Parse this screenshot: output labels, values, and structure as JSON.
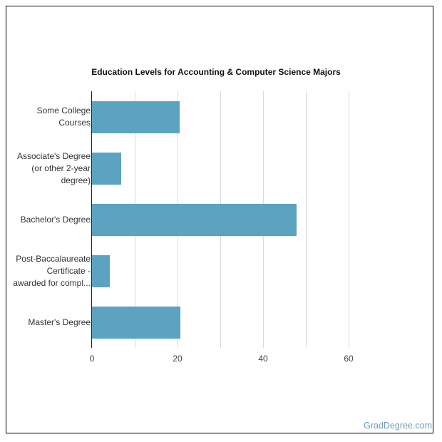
{
  "chart_data": {
    "type": "bar",
    "orientation": "horizontal",
    "title": "Education Levels for Accounting & Computer Science Majors",
    "xlabel": "",
    "ylabel": "",
    "categories": [
      "Some College Courses",
      "Associate's Degree (or other 2-year degree)",
      "Bachelor's Degree",
      "Post-Baccalaureate Certificate - awarded for compl...",
      "Master's Degree"
    ],
    "category_label_lines": [
      [
        "Some College",
        "Courses"
      ],
      [
        "Associate's Degree",
        "(or other 2-year",
        "degree)"
      ],
      [
        "Bachelor's Degree"
      ],
      [
        "Post-Baccalaureate",
        "Certificate -",
        "awarded for compl..."
      ],
      [
        "Master's Degree"
      ]
    ],
    "values": [
      20.5,
      6.9,
      47.9,
      4.2,
      20.7
    ],
    "xlim": [
      0,
      60
    ],
    "xticks": [
      "0",
      "20",
      "40",
      "60"
    ],
    "grid": true,
    "grid_step": 10,
    "bar_color": "#5ba3c0",
    "legend": null
  },
  "watermark": "GradDegree.com"
}
